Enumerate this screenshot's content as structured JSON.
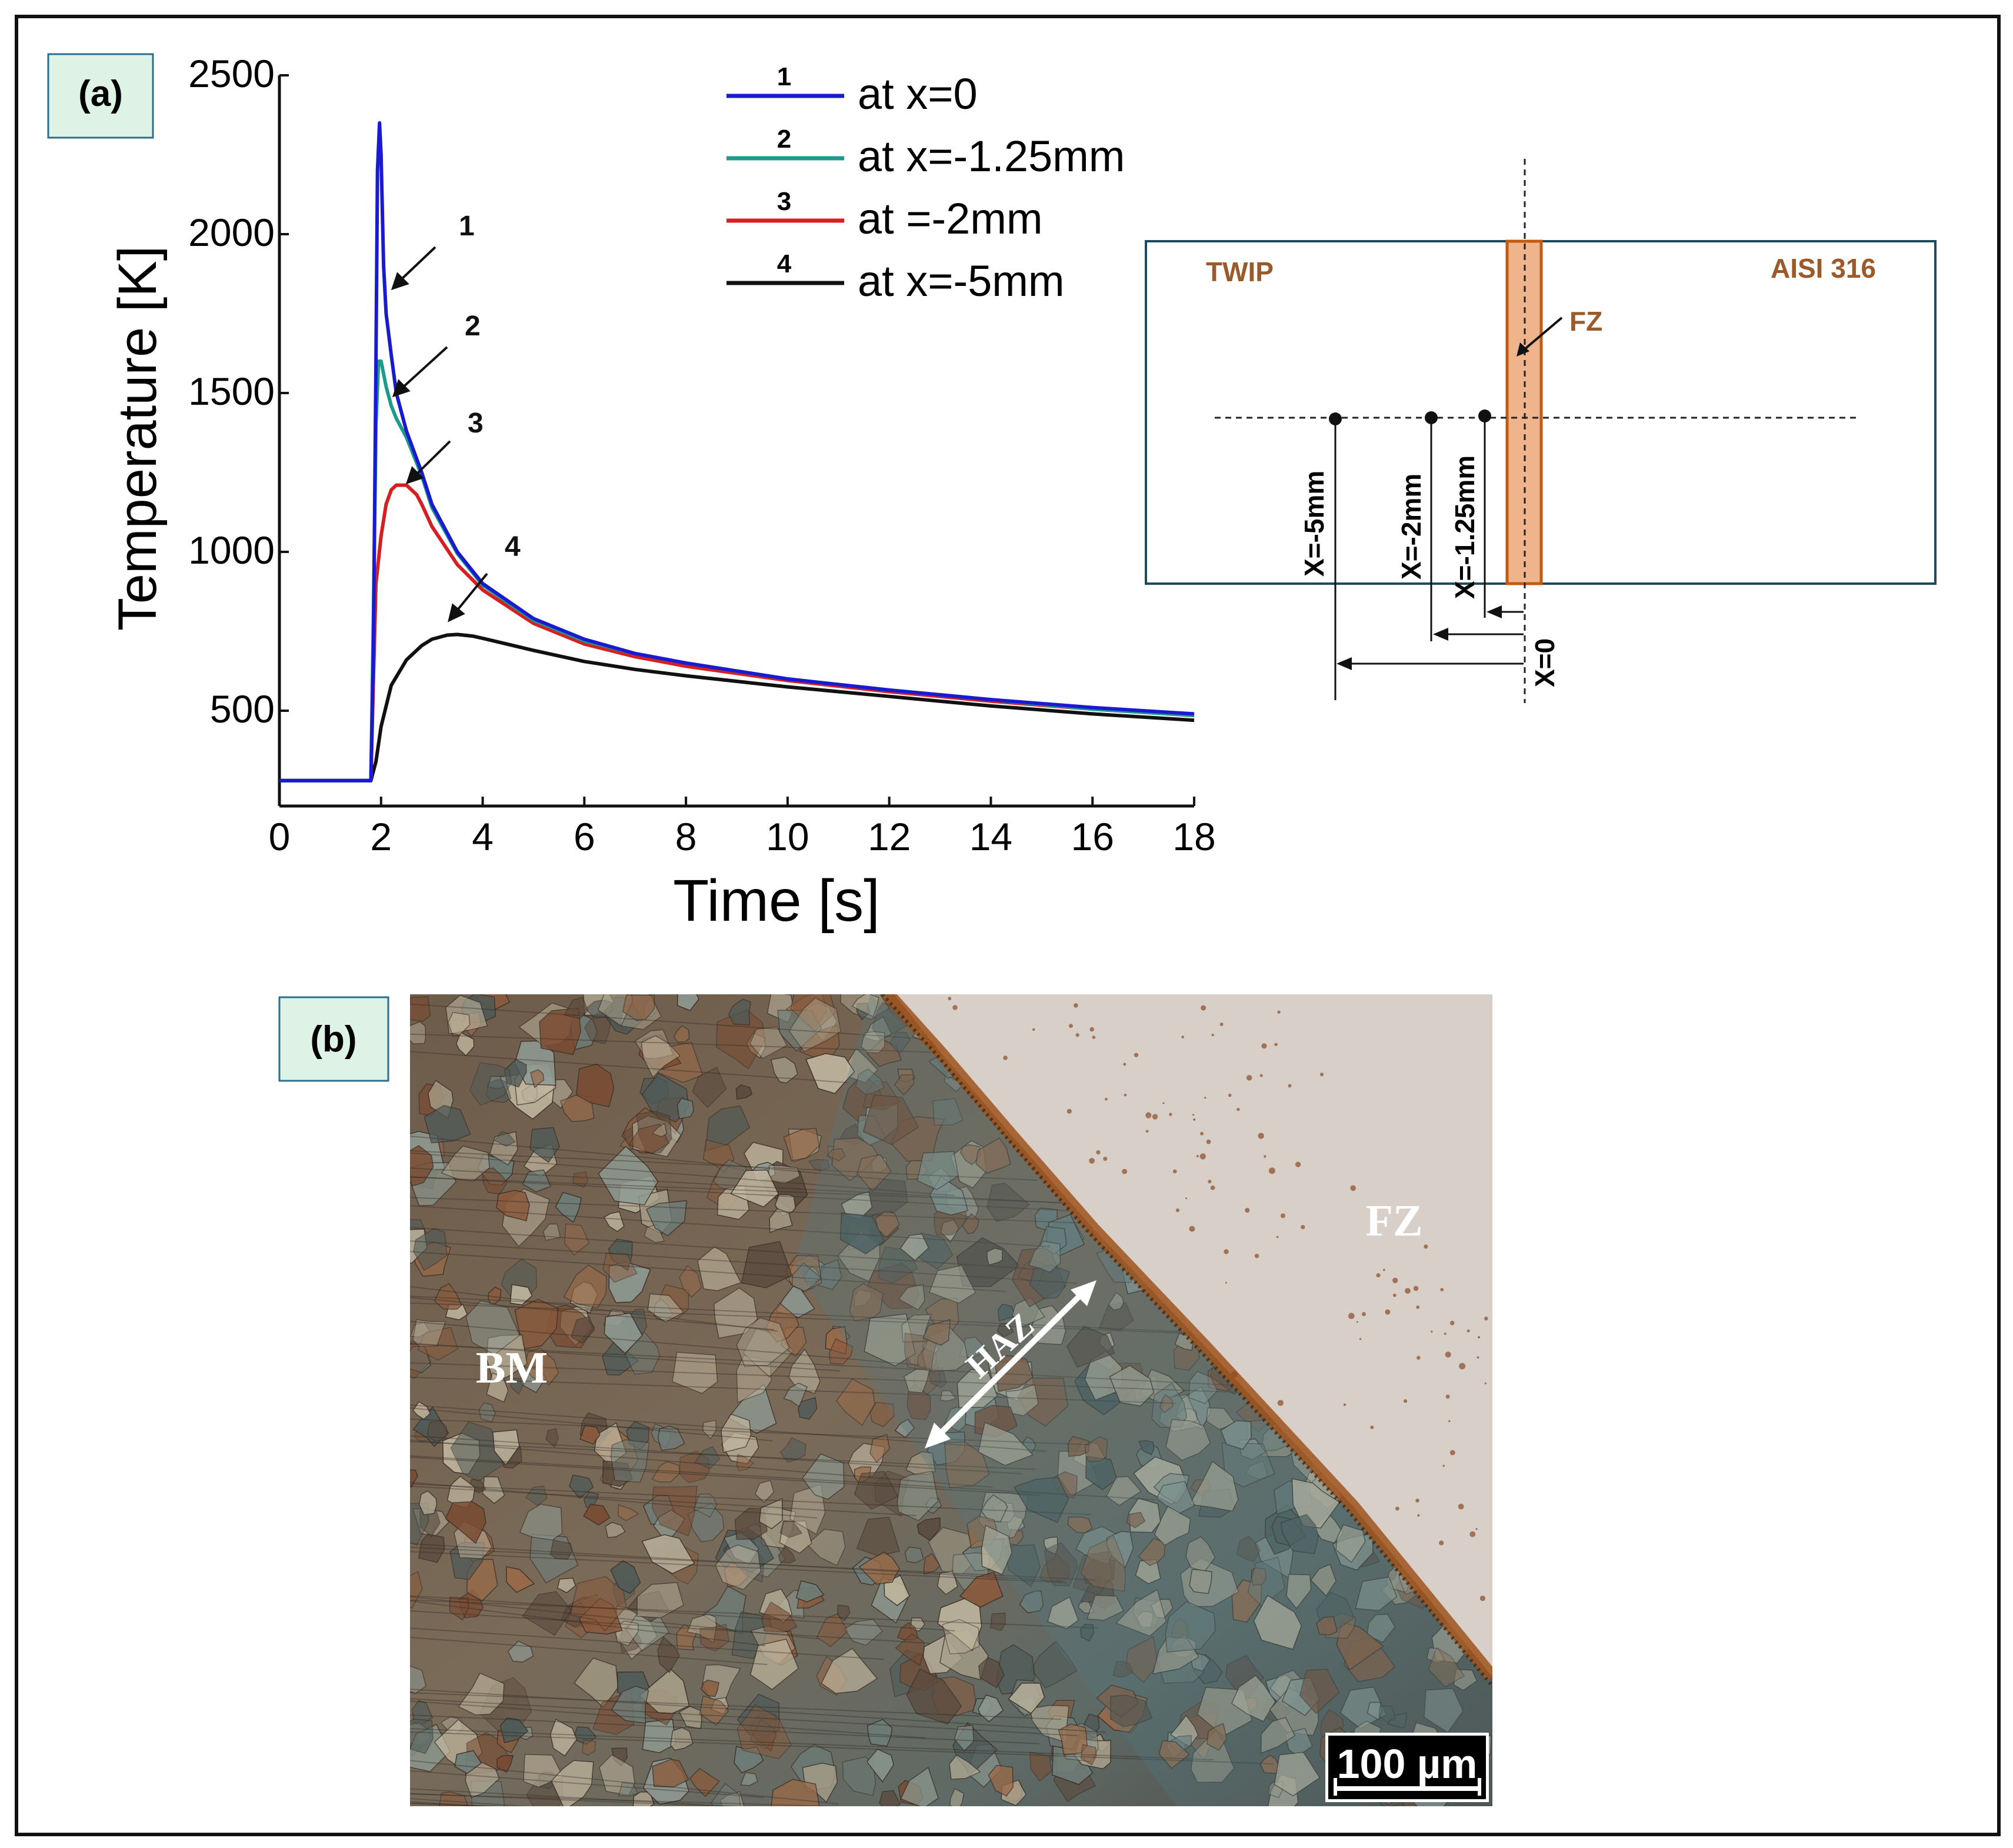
{
  "panels": {
    "a": {
      "label": "(a)"
    },
    "b": {
      "label": "(b)"
    }
  },
  "chart_data": {
    "type": "line",
    "xlabel": "Time [s]",
    "ylabel": "Temperature [K]",
    "xlim": [
      0,
      18
    ],
    "ylim": [
      200,
      2500
    ],
    "xticks": [
      0,
      2,
      4,
      6,
      8,
      10,
      12,
      14,
      16,
      18
    ],
    "xtick_labels": [
      "0",
      "2",
      "4",
      "6",
      "8",
      "10",
      "12",
      "14",
      "16",
      "18"
    ],
    "yticks": [
      500,
      1000,
      1500,
      2000,
      2500
    ],
    "ytick_labels": [
      "500",
      "1000",
      "1500",
      "2000",
      "2500"
    ],
    "grid": false,
    "legend_position": "top-center",
    "series": [
      {
        "name": "at x=0",
        "number": "1",
        "color": "#1a1ad0",
        "x": [
          0,
          1.8,
          1.85,
          1.9,
          1.93,
          1.97,
          2.0,
          2.05,
          2.1,
          2.2,
          2.3,
          2.5,
          2.8,
          3.0,
          3.5,
          4.0,
          5.0,
          6.0,
          7.0,
          8.0,
          10.0,
          12.0,
          14.0,
          16.0,
          18.0
        ],
        "y": [
          280,
          280,
          700,
          1600,
          2200,
          2350,
          2250,
          1900,
          1750,
          1620,
          1500,
          1380,
          1250,
          1150,
          1000,
          900,
          790,
          725,
          680,
          650,
          600,
          565,
          535,
          510,
          490
        ]
      },
      {
        "name": "at x=-1.25mm",
        "number": "2",
        "color": "#1f9a8a",
        "x": [
          0,
          1.8,
          1.85,
          1.9,
          1.95,
          2.0,
          2.1,
          2.2,
          2.3,
          2.5,
          2.8,
          3.0,
          3.5,
          4.0,
          5.0,
          6.0,
          7.0,
          8.0,
          10.0,
          12.0,
          14.0,
          16.0,
          18.0
        ],
        "y": [
          280,
          280,
          800,
          1400,
          1600,
          1600,
          1520,
          1460,
          1420,
          1360,
          1240,
          1140,
          995,
          895,
          785,
          720,
          680,
          650,
          600,
          565,
          535,
          505,
          485
        ]
      },
      {
        "name": "at =-2mm",
        "number": "3",
        "color": "#d42020",
        "x": [
          0,
          1.8,
          1.85,
          1.9,
          2.0,
          2.1,
          2.2,
          2.3,
          2.5,
          2.7,
          2.8,
          3.0,
          3.5,
          4.0,
          5.0,
          6.0,
          7.0,
          8.0,
          10.0,
          12.0,
          14.0,
          16.0,
          18.0
        ],
        "y": [
          280,
          280,
          600,
          900,
          1050,
          1150,
          1195,
          1210,
          1210,
          1180,
          1150,
          1080,
          960,
          880,
          775,
          710,
          670,
          640,
          595,
          560,
          530,
          505,
          485
        ]
      },
      {
        "name": "at x=-5mm",
        "number": "4",
        "color": "#111111",
        "x": [
          0,
          1.8,
          1.9,
          2.0,
          2.2,
          2.5,
          2.8,
          3.0,
          3.3,
          3.5,
          3.8,
          4.0,
          5.0,
          6.0,
          7.0,
          8.0,
          10.0,
          12.0,
          14.0,
          16.0,
          18.0
        ],
        "y": [
          280,
          280,
          340,
          450,
          580,
          660,
          705,
          725,
          738,
          740,
          735,
          728,
          690,
          655,
          630,
          610,
          575,
          545,
          515,
          490,
          470
        ]
      }
    ],
    "annotations": [
      "1",
      "2",
      "3",
      "4"
    ]
  },
  "schematic": {
    "left_material": "TWIP",
    "right_material": "AISI 316",
    "zone": "FZ",
    "dim_labels": [
      "X=-5mm",
      "X=-2mm",
      "X=-1.25mm",
      "X=0"
    ],
    "colors": {
      "frame": "#1e4a5e",
      "weld": "#f0b48c",
      "weld_edge": "#c45a10",
      "text": "#9a5a2a"
    }
  },
  "micrograph": {
    "labels": {
      "bm": "BM",
      "fz": "FZ",
      "haz": "HAZ"
    },
    "scale_bar": "100 µm"
  }
}
